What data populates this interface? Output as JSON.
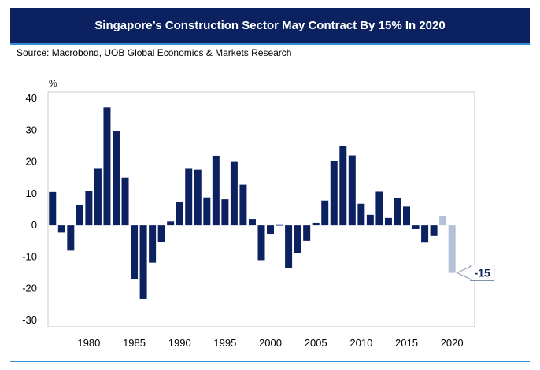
{
  "header": {
    "title": "Singapore’s Construction Sector May Contract By 15% In 2020",
    "source": "Source: Macrobond, UOB Global Economics & Markets Research"
  },
  "colors": {
    "bar": "#0b2160",
    "forecast_bar": "#b4c0d6",
    "title_bg": "#0b2160",
    "accent_line": "#2f8fd8"
  },
  "chart_data": {
    "type": "bar",
    "unit_label": "%",
    "ylim": [
      -32,
      42
    ],
    "y_ticks": [
      40,
      30,
      20,
      10,
      0,
      -10,
      -20,
      -30
    ],
    "x_ticks": [
      1980,
      1985,
      1990,
      1995,
      2000,
      2005,
      2010,
      2015,
      2020
    ],
    "x_range": [
      1976,
      2022
    ],
    "grid": false,
    "series": [
      {
        "values": [
          {
            "x": 1976,
            "y": 10.5
          },
          {
            "x": 1977,
            "y": -2.3
          },
          {
            "x": 1978,
            "y": -8.0
          },
          {
            "x": 1979,
            "y": 6.5
          },
          {
            "x": 1980,
            "y": 10.8
          },
          {
            "x": 1981,
            "y": 17.8
          },
          {
            "x": 1982,
            "y": 37.2
          },
          {
            "x": 1983,
            "y": 29.8
          },
          {
            "x": 1984,
            "y": 15.0
          },
          {
            "x": 1985,
            "y": -17.0
          },
          {
            "x": 1986,
            "y": -23.3
          },
          {
            "x": 1987,
            "y": -11.8
          },
          {
            "x": 1988,
            "y": -5.3
          },
          {
            "x": 1989,
            "y": 1.2
          },
          {
            "x": 1990,
            "y": 7.4
          },
          {
            "x": 1991,
            "y": 17.8
          },
          {
            "x": 1992,
            "y": 17.5
          },
          {
            "x": 1993,
            "y": 8.8
          },
          {
            "x": 1994,
            "y": 21.9
          },
          {
            "x": 1995,
            "y": 8.2
          },
          {
            "x": 1996,
            "y": 20.0
          },
          {
            "x": 1997,
            "y": 12.8
          },
          {
            "x": 1998,
            "y": 2.0
          },
          {
            "x": 1999,
            "y": -11.0
          },
          {
            "x": 2000,
            "y": -2.7
          },
          {
            "x": 2001,
            "y": 0.1
          },
          {
            "x": 2002,
            "y": -13.4
          },
          {
            "x": 2003,
            "y": -8.7
          },
          {
            "x": 2004,
            "y": -4.9
          },
          {
            "x": 2005,
            "y": 0.8
          },
          {
            "x": 2006,
            "y": 7.8
          },
          {
            "x": 2007,
            "y": 20.4
          },
          {
            "x": 2008,
            "y": 25.0
          },
          {
            "x": 2009,
            "y": 22.0
          },
          {
            "x": 2010,
            "y": 6.8
          },
          {
            "x": 2011,
            "y": 3.3
          },
          {
            "x": 2012,
            "y": 10.6
          },
          {
            "x": 2013,
            "y": 2.3
          },
          {
            "x": 2014,
            "y": 8.6
          },
          {
            "x": 2015,
            "y": 5.9
          },
          {
            "x": 2016,
            "y": -1.2
          },
          {
            "x": 2017,
            "y": -5.5
          },
          {
            "x": 2018,
            "y": -3.4
          }
        ]
      },
      {
        "values": [
          {
            "x": 2019,
            "y": 2.8
          },
          {
            "x": 2020,
            "y": -15.0
          }
        ],
        "forecast": true
      }
    ],
    "annotation": {
      "label": "-15",
      "x": 2020,
      "y": -15
    }
  }
}
